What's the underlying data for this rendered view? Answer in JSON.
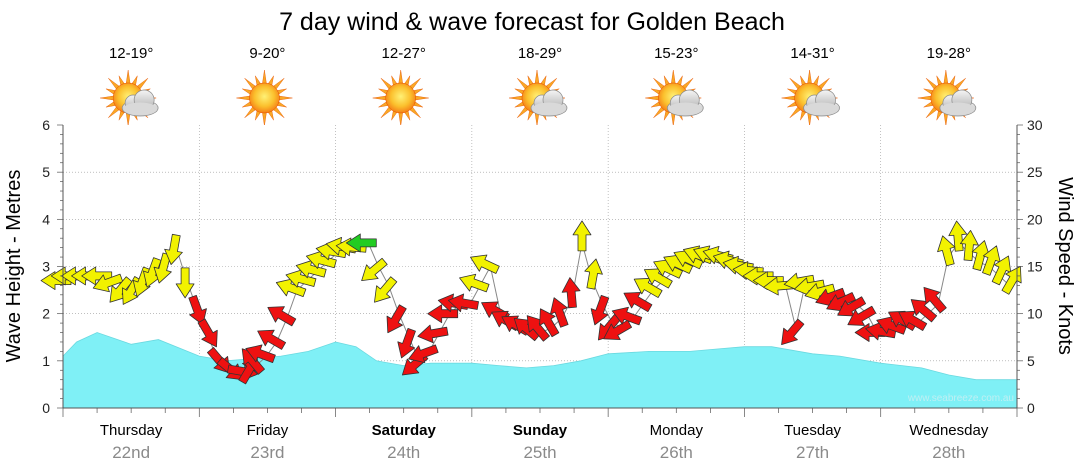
{
  "chart_data": {
    "type": "line",
    "title": "7 day wind & wave forecast for Golden Beach",
    "ylabel_left": "Wave Height - Metres",
    "ylabel_right": "Wind Speed - Knots",
    "left_ylim": [
      0,
      6
    ],
    "left_ticks": [
      "0",
      "1",
      "2",
      "3",
      "4",
      "5",
      "6"
    ],
    "right_ylim": [
      0,
      30
    ],
    "right_ticks": [
      "0",
      "5",
      "10",
      "15",
      "20",
      "25",
      "30"
    ],
    "watermark": "www.seabreeze.com.au",
    "days": [
      {
        "name": "Thursday",
        "date": "22nd",
        "temp": "12-19°",
        "icon": "partly-cloudy-icon",
        "weekend": false
      },
      {
        "name": "Friday",
        "date": "23rd",
        "temp": "9-20°",
        "icon": "sunny-icon",
        "weekend": false
      },
      {
        "name": "Saturday",
        "date": "24th",
        "temp": "12-27°",
        "icon": "sunny-icon",
        "weekend": true
      },
      {
        "name": "Sunday",
        "date": "25th",
        "temp": "18-29°",
        "icon": "partly-cloudy-icon",
        "weekend": true
      },
      {
        "name": "Monday",
        "date": "26th",
        "temp": "15-23°",
        "icon": "partly-cloudy-icon",
        "weekend": false
      },
      {
        "name": "Tuesday",
        "date": "27th",
        "temp": "14-31°",
        "icon": "partly-cloudy-icon",
        "weekend": false
      },
      {
        "name": "Wednesday",
        "date": "28th",
        "temp": "19-28°",
        "icon": "partly-cloudy-icon",
        "weekend": false
      }
    ],
    "wave_series": {
      "name": "Wave Height",
      "unit": "m",
      "color": "#7ff0f6",
      "x_days": [
        0,
        0.1,
        0.25,
        0.5,
        0.7,
        1,
        1.2,
        1.4,
        1.6,
        1.8,
        2,
        2.15,
        2.3,
        2.5,
        2.7,
        3,
        3.2,
        3.4,
        3.6,
        3.8,
        4,
        4.3,
        4.6,
        4.8,
        5,
        5.2,
        5.5,
        5.7,
        6,
        6.3,
        6.5,
        6.7,
        7
      ],
      "values": [
        1.1,
        1.4,
        1.6,
        1.35,
        1.45,
        1.1,
        1.0,
        1.05,
        1.1,
        1.2,
        1.4,
        1.3,
        1.0,
        0.9,
        0.95,
        0.95,
        0.9,
        0.85,
        0.9,
        1.0,
        1.15,
        1.2,
        1.2,
        1.25,
        1.3,
        1.3,
        1.15,
        1.1,
        0.95,
        0.85,
        0.7,
        0.6,
        0.6
      ]
    },
    "wind_series": {
      "name": "Wind Speed",
      "unit": "knots",
      "points": [
        {
          "x": 0.0,
          "v": 13.5,
          "c": "y",
          "dir": 270
        },
        {
          "x": 0.08,
          "v": 14.0,
          "c": "y",
          "dir": 270
        },
        {
          "x": 0.16,
          "v": 14.0,
          "c": "y",
          "dir": 270
        },
        {
          "x": 0.24,
          "v": 14.0,
          "c": "y",
          "dir": 270
        },
        {
          "x": 0.32,
          "v": 14.0,
          "c": "y",
          "dir": 270
        },
        {
          "x": 0.4,
          "v": 13.5,
          "c": "y",
          "dir": 250
        },
        {
          "x": 0.48,
          "v": 13.0,
          "c": "y",
          "dir": 220
        },
        {
          "x": 0.56,
          "v": 13.0,
          "c": "y",
          "dir": 210
        },
        {
          "x": 0.64,
          "v": 14.0,
          "c": "y",
          "dir": 200
        },
        {
          "x": 0.72,
          "v": 15.0,
          "c": "y",
          "dir": 200
        },
        {
          "x": 0.8,
          "v": 15.5,
          "c": "y",
          "dir": 195
        },
        {
          "x": 0.88,
          "v": 17.5,
          "c": "y",
          "dir": 190
        },
        {
          "x": 0.96,
          "v": 14.0,
          "c": "y",
          "dir": 180
        },
        {
          "x": 1.04,
          "v": 11.0,
          "c": "r",
          "dir": 160
        },
        {
          "x": 1.12,
          "v": 8.5,
          "c": "r",
          "dir": 150
        },
        {
          "x": 1.2,
          "v": 5.5,
          "c": "r",
          "dir": 140
        },
        {
          "x": 1.28,
          "v": 4.5,
          "c": "r",
          "dir": 130
        },
        {
          "x": 1.36,
          "v": 4.0,
          "c": "r",
          "dir": 100
        },
        {
          "x": 1.44,
          "v": 3.5,
          "c": "r",
          "dir": 30
        },
        {
          "x": 1.52,
          "v": 4.5,
          "c": "r",
          "dir": 320
        },
        {
          "x": 1.6,
          "v": 5.5,
          "c": "r",
          "dir": 290
        },
        {
          "x": 1.68,
          "v": 7.0,
          "c": "r",
          "dir": 300
        },
        {
          "x": 1.76,
          "v": 9.5,
          "c": "r",
          "dir": 300
        },
        {
          "x": 1.84,
          "v": 12.5,
          "c": "y",
          "dir": 290
        },
        {
          "x": 1.92,
          "v": 13.5,
          "c": "y",
          "dir": 285
        },
        {
          "x": 2.0,
          "v": 14.5,
          "c": "y",
          "dir": 285
        },
        {
          "x": 2.08,
          "v": 15.5,
          "c": "y",
          "dir": 285
        },
        {
          "x": 2.16,
          "v": 16.5,
          "c": "y",
          "dir": 280
        },
        {
          "x": 2.24,
          "v": 17.0,
          "c": "y",
          "dir": 280
        },
        {
          "x": 2.32,
          "v": 17.0,
          "c": "y",
          "dir": 275
        },
        {
          "x": 2.4,
          "v": 17.5,
          "c": "g",
          "dir": 270
        },
        {
          "x": 2.48,
          "v": 15.0,
          "c": "y",
          "dir": 230
        },
        {
          "x": 2.56,
          "v": 13.0,
          "c": "y",
          "dir": 220
        },
        {
          "x": 2.64,
          "v": 10.0,
          "c": "r",
          "dir": 210
        },
        {
          "x": 2.72,
          "v": 7.5,
          "c": "r",
          "dir": 200
        },
        {
          "x": 2.8,
          "v": 5.0,
          "c": "r",
          "dir": 230
        },
        {
          "x": 2.88,
          "v": 6.0,
          "c": "r",
          "dir": 250
        },
        {
          "x": 2.96,
          "v": 8.0,
          "c": "r",
          "dir": 260
        },
        {
          "x": 3.04,
          "v": 10.0,
          "c": "r",
          "dir": 270
        },
        {
          "x": 3.12,
          "v": 11.0,
          "c": "r",
          "dir": 280
        },
        {
          "x": 3.2,
          "v": 11.0,
          "c": "r",
          "dir": 280
        },
        {
          "x": 3.28,
          "v": 13.0,
          "c": "y",
          "dir": 290
        },
        {
          "x": 3.36,
          "v": 15.0,
          "c": "y",
          "dir": 295
        },
        {
          "x": 3.44,
          "v": 10.0,
          "c": "r",
          "dir": 300
        },
        {
          "x": 3.52,
          "v": 9.0,
          "c": "r",
          "dir": 300
        },
        {
          "x": 3.6,
          "v": 8.5,
          "c": "r",
          "dir": 300
        },
        {
          "x": 3.68,
          "v": 8.0,
          "c": "r",
          "dir": 310
        },
        {
          "x": 3.76,
          "v": 8.0,
          "c": "r",
          "dir": 320
        },
        {
          "x": 3.84,
          "v": 8.5,
          "c": "r",
          "dir": 330
        },
        {
          "x": 3.92,
          "v": 9.5,
          "c": "r",
          "dir": 340
        },
        {
          "x": 4.0,
          "v": 11.5,
          "c": "r",
          "dir": 355
        },
        {
          "x": 4.08,
          "v": 17.5,
          "c": "y",
          "dir": 0
        },
        {
          "x": 4.16,
          "v": 13.5,
          "c": "y",
          "dir": 10
        },
        {
          "x": 4.24,
          "v": 11.0,
          "c": "r",
          "dir": 200
        },
        {
          "x": 4.32,
          "v": 9.0,
          "c": "r",
          "dir": 220
        },
        {
          "x": 4.4,
          "v": 8.5,
          "c": "r",
          "dir": 240
        },
        {
          "x": 4.48,
          "v": 9.5,
          "c": "r",
          "dir": 290
        },
        {
          "x": 4.56,
          "v": 11.0,
          "c": "r",
          "dir": 300
        },
        {
          "x": 4.64,
          "v": 12.5,
          "c": "y",
          "dir": 300
        },
        {
          "x": 4.72,
          "v": 13.5,
          "c": "y",
          "dir": 300
        },
        {
          "x": 4.8,
          "v": 14.5,
          "c": "y",
          "dir": 295
        },
        {
          "x": 4.88,
          "v": 15.0,
          "c": "y",
          "dir": 295
        },
        {
          "x": 4.96,
          "v": 15.5,
          "c": "y",
          "dir": 295
        },
        {
          "x": 5.04,
          "v": 16.0,
          "c": "y",
          "dir": 290
        },
        {
          "x": 5.12,
          "v": 16.0,
          "c": "y",
          "dir": 290
        },
        {
          "x": 5.2,
          "v": 16.0,
          "c": "y",
          "dir": 285
        },
        {
          "x": 5.28,
          "v": 15.5,
          "c": "y",
          "dir": 285
        },
        {
          "x": 5.36,
          "v": 15.0,
          "c": "y",
          "dir": 280
        },
        {
          "x": 5.44,
          "v": 14.5,
          "c": "y",
          "dir": 275
        },
        {
          "x": 5.52,
          "v": 14.0,
          "c": "y",
          "dir": 270
        },
        {
          "x": 5.6,
          "v": 13.5,
          "c": "y",
          "dir": 270
        },
        {
          "x": 5.68,
          "v": 13.0,
          "c": "y",
          "dir": 265
        },
        {
          "x": 5.76,
          "v": 8.5,
          "c": "r",
          "dir": 220
        },
        {
          "x": 5.84,
          "v": 13.5,
          "c": "y",
          "dir": 260
        },
        {
          "x": 5.92,
          "v": 13.0,
          "c": "y",
          "dir": 260
        },
        {
          "x": 6.0,
          "v": 12.5,
          "c": "y",
          "dir": 255
        },
        {
          "x": 6.08,
          "v": 12.0,
          "c": "r",
          "dir": 250
        },
        {
          "x": 6.16,
          "v": 11.5,
          "c": "r",
          "dir": 245
        },
        {
          "x": 6.24,
          "v": 11.0,
          "c": "r",
          "dir": 240
        },
        {
          "x": 6.32,
          "v": 10.0,
          "c": "r",
          "dir": 240
        },
        {
          "x": 6.4,
          "v": 8.0,
          "c": "r",
          "dir": 270
        },
        {
          "x": 6.48,
          "v": 8.0,
          "c": "r",
          "dir": 280
        },
        {
          "x": 6.56,
          "v": 8.5,
          "c": "r",
          "dir": 290
        },
        {
          "x": 6.64,
          "v": 9.0,
          "c": "r",
          "dir": 300
        },
        {
          "x": 6.72,
          "v": 9.0,
          "c": "r",
          "dir": 300
        },
        {
          "x": 6.8,
          "v": 10.0,
          "c": "r",
          "dir": 310
        },
        {
          "x": 6.88,
          "v": 11.0,
          "c": "r",
          "dir": 320
        },
        {
          "x": 6.96,
          "v": 16.0,
          "c": "y",
          "dir": 345
        },
        {
          "x": 7.04,
          "v": 17.5,
          "c": "y",
          "dir": 355
        },
        {
          "x": 7.12,
          "v": 16.5,
          "c": "y",
          "dir": 5
        },
        {
          "x": 7.2,
          "v": 15.5,
          "c": "y",
          "dir": 15
        },
        {
          "x": 7.28,
          "v": 15.0,
          "c": "y",
          "dir": 20
        },
        {
          "x": 7.36,
          "v": 14.0,
          "c": "y",
          "dir": 25
        },
        {
          "x": 7.44,
          "v": 13.0,
          "c": "y",
          "dir": 30
        }
      ]
    },
    "colors": {
      "wave_fill": "#7ff0f6",
      "wind_strong": "#f2f200",
      "wind_moderate": "#ee1111",
      "wind_light": "#22cc22",
      "grid": "#999999"
    }
  }
}
